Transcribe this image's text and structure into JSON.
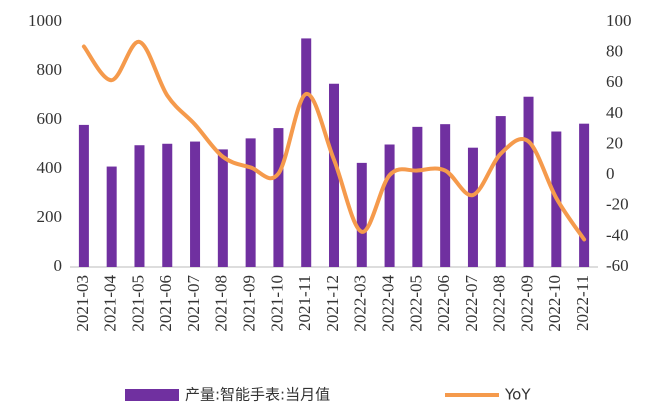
{
  "chart_data": {
    "type": "bar",
    "categories": [
      "2021-03",
      "2021-04",
      "2021-05",
      "2021-06",
      "2021-07",
      "2021-08",
      "2021-09",
      "2021-10",
      "2021-11",
      "2021-12",
      "2022-03",
      "2022-04",
      "2022-05",
      "2022-06",
      "2022-07",
      "2022-08",
      "2022-09",
      "2022-10",
      "2022-11"
    ],
    "series": [
      {
        "name": "产量:智能手表:当月值",
        "type": "bar",
        "color": "#7030a0",
        "values": [
          580,
          410,
          497,
          503,
          512,
          480,
          525,
          567,
          933,
          748,
          425,
          500,
          572,
          583,
          487,
          616,
          695,
          553,
          585
        ]
      },
      {
        "name": "YoY",
        "type": "line",
        "axis": "y2",
        "color": "#f59a4c",
        "values": [
          84,
          62,
          87,
          52,
          33,
          12,
          5,
          1,
          53,
          10,
          -37,
          0,
          3,
          3,
          -13,
          14,
          22,
          -15,
          -42
        ]
      }
    ],
    "ylim": [
      0,
      1000
    ],
    "yticks": [
      0,
      200,
      400,
      600,
      800,
      1000
    ],
    "y2lim": [
      -60,
      100
    ],
    "y2ticks": [
      -60,
      -40,
      -20,
      0,
      20,
      40,
      60,
      80,
      100
    ],
    "legend": "bottom"
  }
}
